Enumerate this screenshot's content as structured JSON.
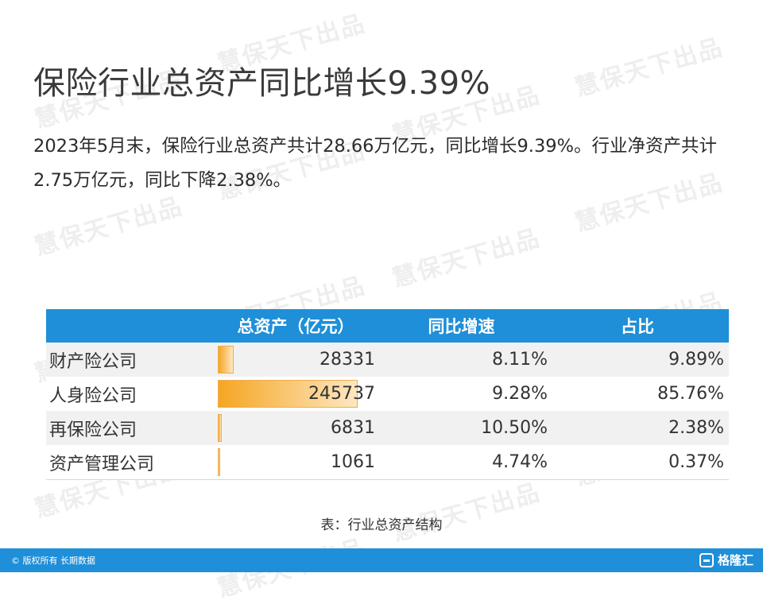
{
  "title": "保险行业总资产同比增长9.39%",
  "paragraph": "2023年5月末，保险行业总资产共计28.66万亿元，同比增长9.39%。行业净资产共计2.75万亿元，同比下降2.38%。",
  "table": {
    "headers": [
      "",
      "总资产（亿元）",
      "同比增速",
      "占比"
    ],
    "rows": [
      {
        "name": "财产险公司",
        "total": "28331",
        "growth": "8.11%",
        "share": "9.89%",
        "share_value": 9.89
      },
      {
        "name": "人身险公司",
        "total": "245737",
        "growth": "9.28%",
        "share": "85.76%",
        "share_value": 85.76
      },
      {
        "name": "再保险公司",
        "total": "6831",
        "growth": "10.50%",
        "share": "2.38%",
        "share_value": 2.38
      },
      {
        "name": "资产管理公司",
        "total": "1061",
        "growth": "4.74%",
        "share": "0.37%",
        "share_value": 0.37
      }
    ]
  },
  "caption": "表：行业总资产结构",
  "footer": {
    "copyright": "© 版权所有 长期数据",
    "logo_text": "格隆汇"
  },
  "watermark": "慧保天下出品",
  "colors": {
    "header_bg": "#1e8fd8",
    "bar": "#f5a623",
    "footer_bg": "#1e8fd8"
  }
}
